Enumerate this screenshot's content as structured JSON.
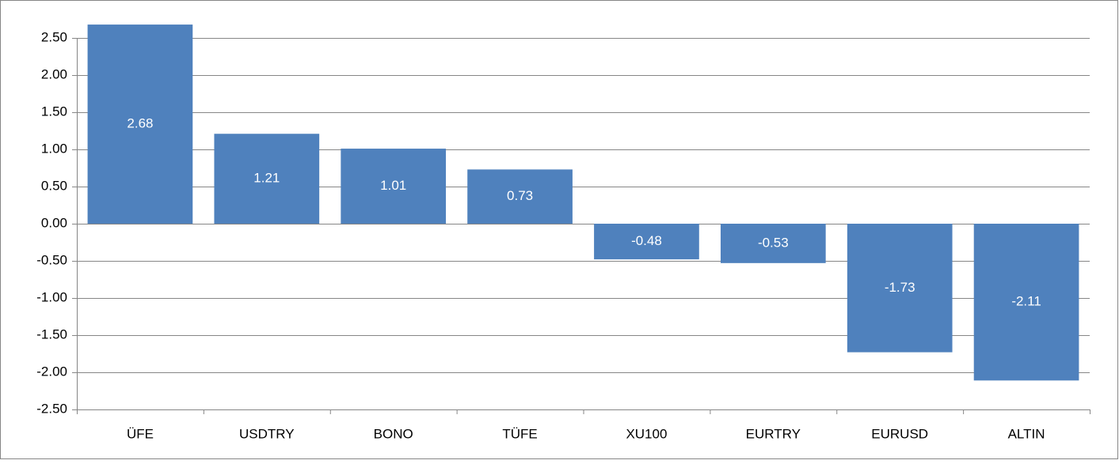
{
  "chart_data": {
    "type": "bar",
    "categories": [
      "ÜFE",
      "USDTRY",
      "BONO",
      "TÜFE",
      "XU100",
      "EURTRY",
      "EURUSD",
      "ALTIN"
    ],
    "values": [
      2.68,
      1.21,
      1.01,
      0.73,
      -0.48,
      -0.53,
      -1.73,
      -2.11
    ],
    "color": "#4f81bd",
    "ylim": [
      -2.5,
      2.75
    ],
    "yticks": [
      {
        "value": 2.5,
        "label": "2.50"
      },
      {
        "value": 2,
        "label": "2.00"
      },
      {
        "value": 1.5,
        "label": "1.50"
      },
      {
        "value": 1,
        "label": "1.00"
      },
      {
        "value": 0.5,
        "label": "0.50"
      },
      {
        "value": 0,
        "label": "0.00"
      },
      {
        "value": -0.5,
        "label": "-0.50"
      },
      {
        "value": -1,
        "label": "-1.00"
      },
      {
        "value": -1.5,
        "label": "-1.50"
      },
      {
        "value": -2,
        "label": "-2.00"
      },
      {
        "value": -2.5,
        "label": "-2.50"
      }
    ],
    "grid": true
  }
}
